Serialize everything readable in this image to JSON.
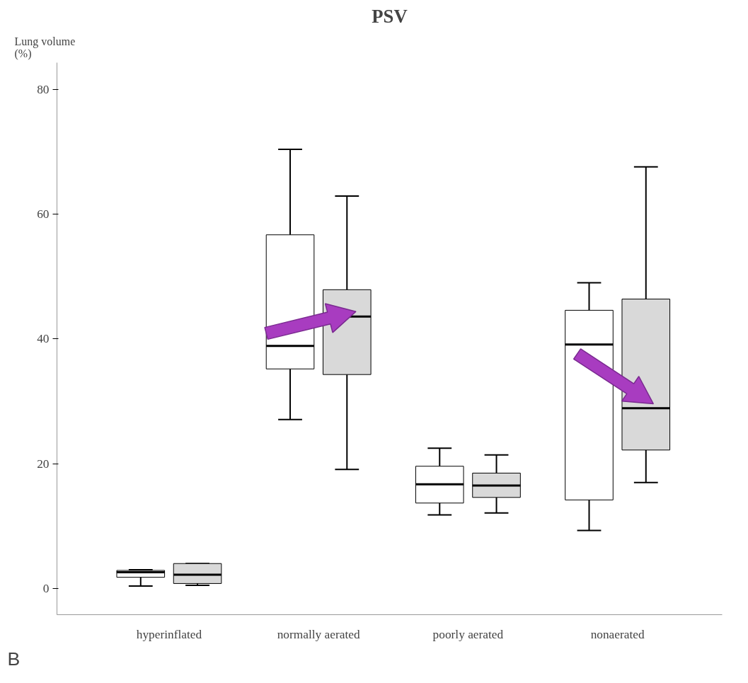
{
  "chart_data": {
    "type": "box",
    "title": "PSV",
    "ylabel": "Lung volume\n(%)",
    "categories": [
      "hyperinflated",
      "normally aerated",
      "poorly aerated",
      "nonaerated"
    ],
    "ylim": [
      -4.2,
      84.3
    ],
    "yticks": [
      0,
      20,
      40,
      60,
      80
    ],
    "grid": false,
    "annotations": [
      "B"
    ],
    "series": [
      {
        "color": "#ffffff",
        "boxes": [
          {
            "low": 0.4,
            "q1": 1.8,
            "median": 2.6,
            "q3": 2.9,
            "high": 3.0
          },
          {
            "low": 27.1,
            "q1": 35.2,
            "median": 38.9,
            "q3": 56.7,
            "high": 70.4
          },
          {
            "low": 11.8,
            "q1": 13.7,
            "median": 16.7,
            "q3": 19.6,
            "high": 22.5
          },
          {
            "low": 9.3,
            "q1": 14.2,
            "median": 39.1,
            "q3": 44.6,
            "high": 49.0
          }
        ]
      },
      {
        "color": "#d9d9d9",
        "boxes": [
          {
            "low": 0.5,
            "q1": 0.8,
            "median": 2.2,
            "q3": 4.0,
            "high": 4.0
          },
          {
            "low": 19.1,
            "q1": 34.3,
            "median": 43.6,
            "q3": 47.9,
            "high": 62.9
          },
          {
            "low": 12.1,
            "q1": 14.6,
            "median": 16.5,
            "q3": 18.5,
            "high": 21.4
          },
          {
            "low": 17.0,
            "q1": 22.2,
            "median": 28.9,
            "q3": 46.4,
            "high": 67.6
          }
        ]
      }
    ]
  }
}
